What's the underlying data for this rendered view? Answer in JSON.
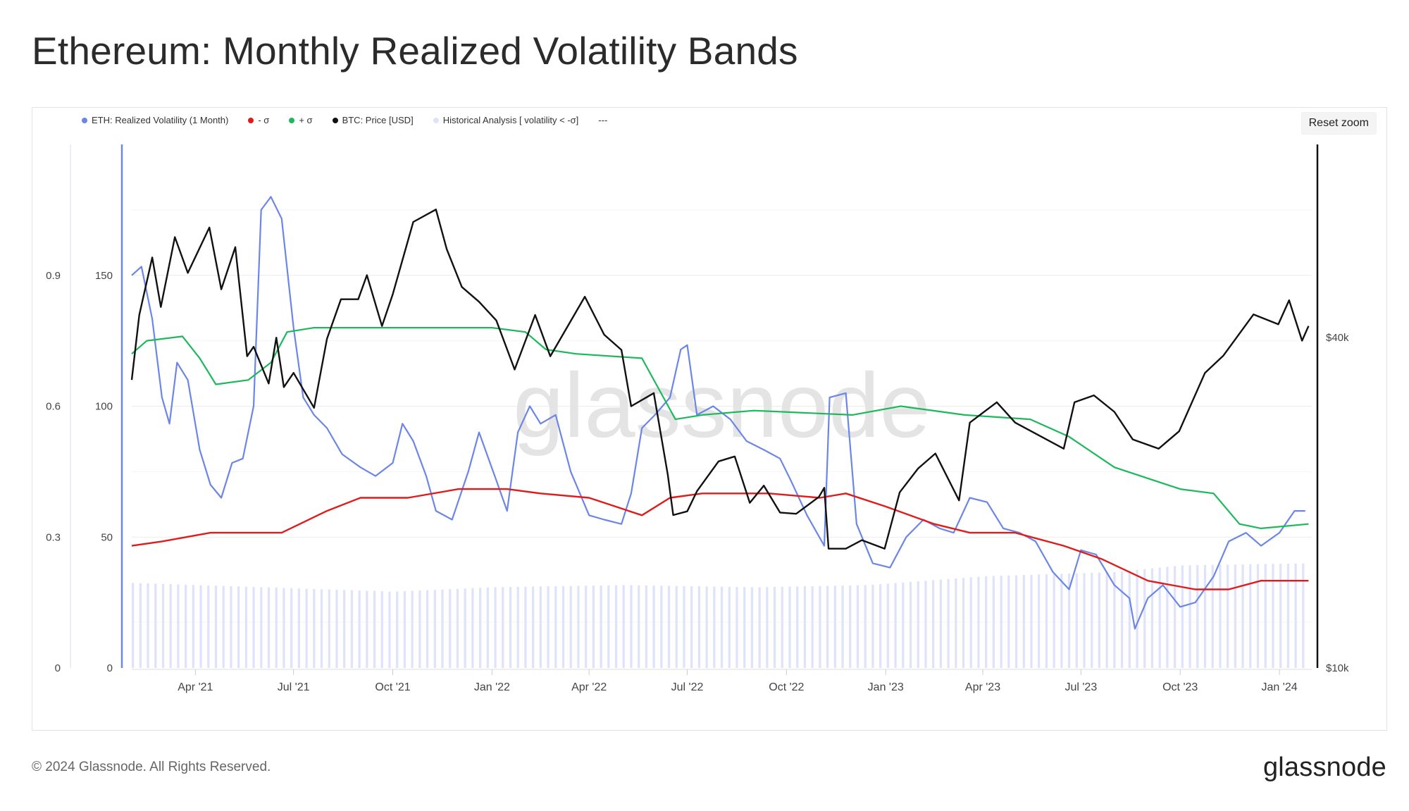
{
  "page": {
    "title": "Ethereum: Monthly Realized Volatility Bands",
    "copyright": "© 2024 Glassnode. All Rights Reserved.",
    "logo": "glassnode",
    "watermark": "glassnode",
    "reset_zoom_label": "Reset zoom"
  },
  "legend": [
    {
      "label": "ETH: Realized Volatility (1 Month)",
      "color": "#6b86e6"
    },
    {
      "label": "- σ",
      "color": "#e01b1b"
    },
    {
      "label": "+ σ",
      "color": "#1cb85c"
    },
    {
      "label": "BTC: Price [USD]",
      "color": "#111111"
    },
    {
      "label": "Historical Analysis [ volatility < -σ]",
      "color": "#dfe2fb"
    },
    {
      "label": "---",
      "color": null
    }
  ],
  "chart_data": {
    "type": "line",
    "title": "Ethereum: Monthly Realized Volatility Bands",
    "x_start": "2021-02-01",
    "x_end": "2024-01-31",
    "x_tick_labels": [
      "Apr '21",
      "Jul '21",
      "Oct '21",
      "Jan '22",
      "Apr '22",
      "Jul '22",
      "Oct '22",
      "Jan '23",
      "Apr '23",
      "Jul '23",
      "Oct '23",
      "Jan '24"
    ],
    "x_tick_dates": [
      "2021-04-01",
      "2021-07-01",
      "2021-10-01",
      "2022-01-01",
      "2022-04-01",
      "2022-07-01",
      "2022-10-01",
      "2023-01-01",
      "2023-04-01",
      "2023-07-01",
      "2023-10-01",
      "2024-01-01"
    ],
    "axes": {
      "vol_axis": {
        "ticks": [
          0,
          0.3,
          0.6,
          0.9
        ],
        "labels": [
          "0",
          "0.3",
          "0.6",
          "0.9"
        ],
        "range": [
          0,
          1.2
        ]
      },
      "level_axis": {
        "ticks": [
          0,
          50,
          100,
          150
        ],
        "labels": [
          "0",
          "50",
          "100",
          "150"
        ],
        "range": [
          0,
          200
        ]
      },
      "price_axis": {
        "scale": "log",
        "ticks": [
          10000,
          40000
        ],
        "labels": [
          "$10k",
          "$40k"
        ],
        "range": [
          10000,
          90000
        ]
      }
    },
    "grid": true,
    "legend_position": "top-left",
    "series": [
      {
        "name": "ETH: Realized Volatility (1 Month)",
        "axis": "vol_axis",
        "color": "#6b86e6",
        "points": [
          [
            "2021-02-01",
            0.9
          ],
          [
            "2021-02-10",
            0.92
          ],
          [
            "2021-02-20",
            0.8
          ],
          [
            "2021-03-01",
            0.62
          ],
          [
            "2021-03-08",
            0.56
          ],
          [
            "2021-03-15",
            0.7
          ],
          [
            "2021-03-25",
            0.66
          ],
          [
            "2021-04-05",
            0.5
          ],
          [
            "2021-04-15",
            0.42
          ],
          [
            "2021-04-25",
            0.39
          ],
          [
            "2021-05-05",
            0.47
          ],
          [
            "2021-05-15",
            0.48
          ],
          [
            "2021-05-25",
            0.6
          ],
          [
            "2021-06-01",
            1.05
          ],
          [
            "2021-06-10",
            1.08
          ],
          [
            "2021-06-20",
            1.03
          ],
          [
            "2021-07-01",
            0.78
          ],
          [
            "2021-07-10",
            0.62
          ],
          [
            "2021-07-20",
            0.58
          ],
          [
            "2021-08-01",
            0.55
          ],
          [
            "2021-08-15",
            0.49
          ],
          [
            "2021-09-01",
            0.46
          ],
          [
            "2021-09-15",
            0.44
          ],
          [
            "2021-10-01",
            0.47
          ],
          [
            "2021-10-10",
            0.56
          ],
          [
            "2021-10-20",
            0.52
          ],
          [
            "2021-11-01",
            0.44
          ],
          [
            "2021-11-10",
            0.36
          ],
          [
            "2021-11-25",
            0.34
          ],
          [
            "2021-12-10",
            0.45
          ],
          [
            "2021-12-20",
            0.54
          ],
          [
            "2022-01-05",
            0.43
          ],
          [
            "2022-01-15",
            0.36
          ],
          [
            "2022-01-25",
            0.54
          ],
          [
            "2022-02-05",
            0.6
          ],
          [
            "2022-02-15",
            0.56
          ],
          [
            "2022-03-01",
            0.58
          ],
          [
            "2022-03-15",
            0.45
          ],
          [
            "2022-04-01",
            0.35
          ],
          [
            "2022-04-15",
            0.34
          ],
          [
            "2022-05-01",
            0.33
          ],
          [
            "2022-05-10",
            0.4
          ],
          [
            "2022-05-20",
            0.55
          ],
          [
            "2022-06-01",
            0.58
          ],
          [
            "2022-06-15",
            0.62
          ],
          [
            "2022-06-25",
            0.73
          ],
          [
            "2022-07-01",
            0.74
          ],
          [
            "2022-07-10",
            0.58
          ],
          [
            "2022-07-25",
            0.6
          ],
          [
            "2022-08-10",
            0.57
          ],
          [
            "2022-08-25",
            0.52
          ],
          [
            "2022-09-10",
            0.5
          ],
          [
            "2022-09-25",
            0.48
          ],
          [
            "2022-10-05",
            0.43
          ],
          [
            "2022-10-20",
            0.35
          ],
          [
            "2022-11-05",
            0.28
          ],
          [
            "2022-11-10",
            0.62
          ],
          [
            "2022-11-25",
            0.63
          ],
          [
            "2022-12-05",
            0.33
          ],
          [
            "2022-12-20",
            0.24
          ],
          [
            "2023-01-05",
            0.23
          ],
          [
            "2023-01-20",
            0.3
          ],
          [
            "2023-02-05",
            0.34
          ],
          [
            "2023-02-20",
            0.32
          ],
          [
            "2023-03-05",
            0.31
          ],
          [
            "2023-03-20",
            0.39
          ],
          [
            "2023-04-05",
            0.38
          ],
          [
            "2023-04-20",
            0.32
          ],
          [
            "2023-05-05",
            0.31
          ],
          [
            "2023-05-20",
            0.29
          ],
          [
            "2023-06-05",
            0.22
          ],
          [
            "2023-06-20",
            0.18
          ],
          [
            "2023-07-01",
            0.27
          ],
          [
            "2023-07-15",
            0.26
          ],
          [
            "2023-08-01",
            0.19
          ],
          [
            "2023-08-15",
            0.16
          ],
          [
            "2023-08-20",
            0.09
          ],
          [
            "2023-09-01",
            0.16
          ],
          [
            "2023-09-15",
            0.19
          ],
          [
            "2023-10-01",
            0.14
          ],
          [
            "2023-10-15",
            0.15
          ],
          [
            "2023-11-01",
            0.21
          ],
          [
            "2023-11-15",
            0.29
          ],
          [
            "2023-12-01",
            0.31
          ],
          [
            "2023-12-15",
            0.28
          ],
          [
            "2024-01-01",
            0.31
          ],
          [
            "2024-01-15",
            0.36
          ],
          [
            "2024-01-25",
            0.36
          ]
        ]
      },
      {
        "name": "- σ",
        "axis": "vol_axis",
        "color": "#e01b1b",
        "points": [
          [
            "2021-02-01",
            0.28
          ],
          [
            "2021-03-01",
            0.29
          ],
          [
            "2021-04-15",
            0.31
          ],
          [
            "2021-06-01",
            0.31
          ],
          [
            "2021-06-20",
            0.31
          ],
          [
            "2021-08-01",
            0.36
          ],
          [
            "2021-09-01",
            0.39
          ],
          [
            "2021-10-15",
            0.39
          ],
          [
            "2021-12-01",
            0.41
          ],
          [
            "2022-01-15",
            0.41
          ],
          [
            "2022-02-15",
            0.4
          ],
          [
            "2022-04-01",
            0.39
          ],
          [
            "2022-05-20",
            0.35
          ],
          [
            "2022-06-15",
            0.39
          ],
          [
            "2022-07-15",
            0.4
          ],
          [
            "2022-09-15",
            0.4
          ],
          [
            "2022-11-01",
            0.39
          ],
          [
            "2022-11-25",
            0.4
          ],
          [
            "2023-01-01",
            0.37
          ],
          [
            "2023-02-15",
            0.33
          ],
          [
            "2023-03-20",
            0.31
          ],
          [
            "2023-05-01",
            0.31
          ],
          [
            "2023-06-15",
            0.28
          ],
          [
            "2023-07-20",
            0.25
          ],
          [
            "2023-09-01",
            0.2
          ],
          [
            "2023-10-15",
            0.18
          ],
          [
            "2023-11-15",
            0.18
          ],
          [
            "2023-12-15",
            0.2
          ],
          [
            "2024-01-28",
            0.2
          ]
        ]
      },
      {
        "name": "+ σ",
        "axis": "vol_axis",
        "color": "#1cb85c",
        "points": [
          [
            "2021-02-01",
            0.72
          ],
          [
            "2021-02-15",
            0.75
          ],
          [
            "2021-03-20",
            0.76
          ],
          [
            "2021-04-05",
            0.71
          ],
          [
            "2021-04-20",
            0.65
          ],
          [
            "2021-05-20",
            0.66
          ],
          [
            "2021-06-10",
            0.7
          ],
          [
            "2021-06-25",
            0.77
          ],
          [
            "2021-07-20",
            0.78
          ],
          [
            "2021-09-01",
            0.78
          ],
          [
            "2021-10-15",
            0.78
          ],
          [
            "2022-01-01",
            0.78
          ],
          [
            "2022-02-01",
            0.77
          ],
          [
            "2022-02-20",
            0.73
          ],
          [
            "2022-03-20",
            0.72
          ],
          [
            "2022-05-20",
            0.71
          ],
          [
            "2022-06-20",
            0.57
          ],
          [
            "2022-07-15",
            0.58
          ],
          [
            "2022-09-01",
            0.59
          ],
          [
            "2022-12-01",
            0.58
          ],
          [
            "2023-01-15",
            0.6
          ],
          [
            "2023-03-15",
            0.58
          ],
          [
            "2023-05-15",
            0.57
          ],
          [
            "2023-06-20",
            0.53
          ],
          [
            "2023-08-01",
            0.46
          ],
          [
            "2023-10-01",
            0.41
          ],
          [
            "2023-11-01",
            0.4
          ],
          [
            "2023-11-25",
            0.33
          ],
          [
            "2023-12-15",
            0.32
          ],
          [
            "2024-01-28",
            0.33
          ]
        ]
      },
      {
        "name": "BTC: Price [USD]",
        "axis": "price_axis",
        "color": "#111111",
        "points": [
          [
            "2021-02-01",
            33500
          ],
          [
            "2021-02-08",
            44000
          ],
          [
            "2021-02-20",
            56000
          ],
          [
            "2021-02-28",
            45500
          ],
          [
            "2021-03-13",
            61000
          ],
          [
            "2021-03-25",
            52500
          ],
          [
            "2021-04-14",
            63500
          ],
          [
            "2021-04-25",
            49000
          ],
          [
            "2021-05-08",
            58500
          ],
          [
            "2021-05-12",
            49500
          ],
          [
            "2021-05-19",
            37000
          ],
          [
            "2021-05-25",
            38500
          ],
          [
            "2021-06-08",
            33000
          ],
          [
            "2021-06-15",
            40000
          ],
          [
            "2021-06-22",
            32500
          ],
          [
            "2021-07-01",
            34500
          ],
          [
            "2021-07-20",
            29800
          ],
          [
            "2021-08-01",
            39800
          ],
          [
            "2021-08-14",
            47000
          ],
          [
            "2021-08-30",
            47000
          ],
          [
            "2021-09-07",
            52000
          ],
          [
            "2021-09-21",
            42000
          ],
          [
            "2021-10-01",
            48000
          ],
          [
            "2021-10-20",
            65000
          ],
          [
            "2021-11-10",
            68500
          ],
          [
            "2021-11-20",
            58000
          ],
          [
            "2021-12-04",
            49500
          ],
          [
            "2021-12-20",
            46500
          ],
          [
            "2022-01-05",
            43000
          ],
          [
            "2022-01-22",
            35000
          ],
          [
            "2022-02-10",
            44000
          ],
          [
            "2022-02-24",
            37000
          ],
          [
            "2022-03-28",
            47500
          ],
          [
            "2022-04-15",
            40500
          ],
          [
            "2022-05-01",
            38000
          ],
          [
            "2022-05-10",
            30000
          ],
          [
            "2022-05-31",
            31700
          ],
          [
            "2022-06-13",
            22500
          ],
          [
            "2022-06-18",
            19000
          ],
          [
            "2022-07-01",
            19300
          ],
          [
            "2022-07-10",
            21000
          ],
          [
            "2022-07-30",
            23800
          ],
          [
            "2022-08-14",
            24300
          ],
          [
            "2022-08-28",
            20000
          ],
          [
            "2022-09-10",
            21500
          ],
          [
            "2022-09-25",
            19200
          ],
          [
            "2022-10-10",
            19100
          ],
          [
            "2022-10-31",
            20500
          ],
          [
            "2022-11-05",
            21300
          ],
          [
            "2022-11-09",
            16500
          ],
          [
            "2022-11-25",
            16500
          ],
          [
            "2022-12-10",
            17100
          ],
          [
            "2022-12-31",
            16500
          ],
          [
            "2023-01-14",
            20900
          ],
          [
            "2023-01-31",
            23100
          ],
          [
            "2023-02-16",
            24600
          ],
          [
            "2023-03-10",
            20200
          ],
          [
            "2023-03-20",
            28000
          ],
          [
            "2023-04-14",
            30500
          ],
          [
            "2023-05-01",
            28000
          ],
          [
            "2023-06-15",
            25100
          ],
          [
            "2023-06-25",
            30500
          ],
          [
            "2023-07-13",
            31400
          ],
          [
            "2023-08-01",
            29300
          ],
          [
            "2023-08-18",
            26100
          ],
          [
            "2023-09-11",
            25100
          ],
          [
            "2023-09-30",
            27000
          ],
          [
            "2023-10-24",
            34500
          ],
          [
            "2023-11-10",
            37100
          ],
          [
            "2023-12-08",
            44100
          ],
          [
            "2023-12-31",
            42300
          ],
          [
            "2024-01-10",
            46800
          ],
          [
            "2024-01-22",
            39500
          ],
          [
            "2024-01-28",
            42000
          ]
        ]
      },
      {
        "name": "Historical Analysis [ volatility < -σ]",
        "axis": "vol_axis",
        "color": "#dfe2fb",
        "type": "area",
        "points": [
          [
            "2021-02-01",
            0.195
          ],
          [
            "2021-06-01",
            0.185
          ],
          [
            "2021-10-01",
            0.175
          ],
          [
            "2022-01-01",
            0.185
          ],
          [
            "2022-05-01",
            0.19
          ],
          [
            "2022-09-01",
            0.185
          ],
          [
            "2022-12-15",
            0.19
          ],
          [
            "2023-04-01",
            0.21
          ],
          [
            "2023-08-01",
            0.22
          ],
          [
            "2023-10-01",
            0.235
          ],
          [
            "2024-01-28",
            0.24
          ]
        ]
      }
    ]
  }
}
